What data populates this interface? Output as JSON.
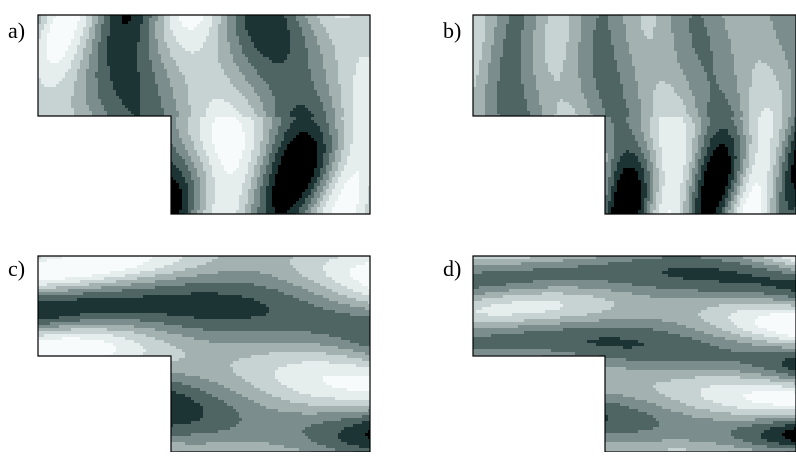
{
  "figure": {
    "panels": [
      {
        "label": "a)",
        "orientation": "vertical"
      },
      {
        "label": "b)",
        "orientation": "vertical"
      },
      {
        "label": "c)",
        "orientation": "horizontal"
      },
      {
        "label": "d)",
        "orientation": "horizontal"
      }
    ],
    "colors": {
      "levels": [
        "#000000",
        "#1c3433",
        "#4e6564",
        "#7b8e8d",
        "#a3b2b1",
        "#c7d3d2",
        "#e6eeed",
        "#f7fbfb"
      ],
      "stroke": "#000000",
      "background": "#ffffff"
    }
  }
}
